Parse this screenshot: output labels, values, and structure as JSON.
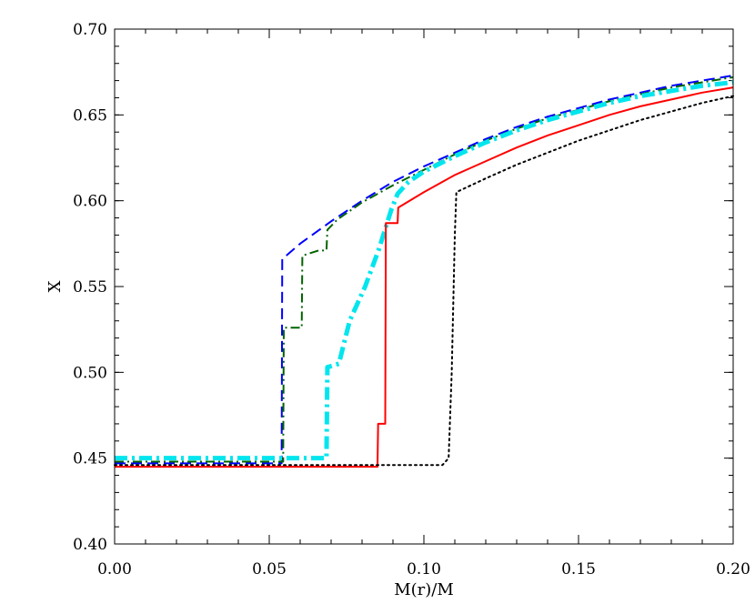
{
  "chart_data": {
    "type": "line",
    "title": "",
    "xlabel": "M(r)/M",
    "ylabel": "X",
    "xlim": [
      0.0,
      0.2
    ],
    "ylim": [
      0.4,
      0.7
    ],
    "grid": false,
    "legend": "none",
    "x_major_ticks": [
      0.0,
      0.05,
      0.1,
      0.15,
      0.2
    ],
    "x_tick_labels": [
      "0.00",
      "0.05",
      "0.10",
      "0.15",
      "0.20"
    ],
    "y_major_ticks": [
      0.4,
      0.45,
      0.5,
      0.55,
      0.6,
      0.65,
      0.7
    ],
    "y_tick_labels": [
      "0.40",
      "0.45",
      "0.50",
      "0.55",
      "0.60",
      "0.65",
      "0.70"
    ],
    "x_minor_step": 0.01,
    "y_minor_step": 0.01,
    "series": [
      {
        "color": "#0000ff",
        "dash": "long-dash",
        "width": 2,
        "points": [
          [
            0.0,
            0.447
          ],
          [
            0.054,
            0.447
          ],
          [
            0.0542,
            0.566
          ],
          [
            0.06,
            0.575
          ],
          [
            0.07,
            0.588
          ],
          [
            0.08,
            0.6
          ],
          [
            0.09,
            0.611
          ],
          [
            0.1,
            0.62
          ],
          [
            0.11,
            0.628
          ],
          [
            0.12,
            0.636
          ],
          [
            0.13,
            0.643
          ],
          [
            0.14,
            0.649
          ],
          [
            0.15,
            0.654
          ],
          [
            0.16,
            0.659
          ],
          [
            0.17,
            0.663
          ],
          [
            0.18,
            0.667
          ],
          [
            0.19,
            0.67
          ],
          [
            0.2,
            0.673
          ]
        ]
      },
      {
        "color": "#006400",
        "dash": "dash-dot",
        "width": 2,
        "points": [
          [
            0.0,
            0.448
          ],
          [
            0.0545,
            0.448
          ],
          [
            0.0547,
            0.526
          ],
          [
            0.0605,
            0.526
          ],
          [
            0.0607,
            0.568
          ],
          [
            0.066,
            0.571
          ],
          [
            0.0685,
            0.571
          ],
          [
            0.0688,
            0.583
          ],
          [
            0.072,
            0.589
          ],
          [
            0.08,
            0.599
          ],
          [
            0.09,
            0.609
          ],
          [
            0.1,
            0.618
          ],
          [
            0.11,
            0.627
          ],
          [
            0.12,
            0.635
          ],
          [
            0.13,
            0.642
          ],
          [
            0.14,
            0.648
          ],
          [
            0.15,
            0.653
          ],
          [
            0.16,
            0.658
          ],
          [
            0.17,
            0.662
          ],
          [
            0.18,
            0.666
          ],
          [
            0.19,
            0.669
          ],
          [
            0.2,
            0.672
          ]
        ]
      },
      {
        "color": "#00e5ee",
        "dash": "thick-dash-dot",
        "width": 5,
        "points": [
          [
            0.0,
            0.45
          ],
          [
            0.0685,
            0.45
          ],
          [
            0.0688,
            0.503
          ],
          [
            0.0725,
            0.505
          ],
          [
            0.076,
            0.53
          ],
          [
            0.081,
            0.55
          ],
          [
            0.0855,
            0.572
          ],
          [
            0.0895,
            0.595
          ],
          [
            0.0915,
            0.604
          ],
          [
            0.095,
            0.611
          ],
          [
            0.1,
            0.617
          ],
          [
            0.11,
            0.626
          ],
          [
            0.12,
            0.634
          ],
          [
            0.13,
            0.641
          ],
          [
            0.14,
            0.647
          ],
          [
            0.15,
            0.652
          ],
          [
            0.16,
            0.657
          ],
          [
            0.17,
            0.661
          ],
          [
            0.18,
            0.664
          ],
          [
            0.19,
            0.667
          ],
          [
            0.2,
            0.669
          ]
        ]
      },
      {
        "color": "#ff0000",
        "dash": "solid",
        "width": 2,
        "points": [
          [
            0.0,
            0.445
          ],
          [
            0.085,
            0.445
          ],
          [
            0.0852,
            0.47
          ],
          [
            0.0875,
            0.47
          ],
          [
            0.0877,
            0.587
          ],
          [
            0.0915,
            0.587
          ],
          [
            0.0917,
            0.596
          ],
          [
            0.1,
            0.605
          ],
          [
            0.11,
            0.615
          ],
          [
            0.12,
            0.623
          ],
          [
            0.13,
            0.631
          ],
          [
            0.14,
            0.638
          ],
          [
            0.15,
            0.644
          ],
          [
            0.16,
            0.65
          ],
          [
            0.17,
            0.655
          ],
          [
            0.18,
            0.659
          ],
          [
            0.19,
            0.663
          ],
          [
            0.2,
            0.666
          ]
        ]
      },
      {
        "color": "#000000",
        "dash": "dotted",
        "width": 2,
        "points": [
          [
            0.0,
            0.446
          ],
          [
            0.106,
            0.446
          ],
          [
            0.108,
            0.45
          ],
          [
            0.109,
            0.5
          ],
          [
            0.11,
            0.58
          ],
          [
            0.1105,
            0.605
          ],
          [
            0.12,
            0.613
          ],
          [
            0.13,
            0.621
          ],
          [
            0.14,
            0.628
          ],
          [
            0.15,
            0.635
          ],
          [
            0.16,
            0.641
          ],
          [
            0.17,
            0.647
          ],
          [
            0.18,
            0.652
          ],
          [
            0.19,
            0.657
          ],
          [
            0.2,
            0.661
          ]
        ]
      }
    ]
  }
}
